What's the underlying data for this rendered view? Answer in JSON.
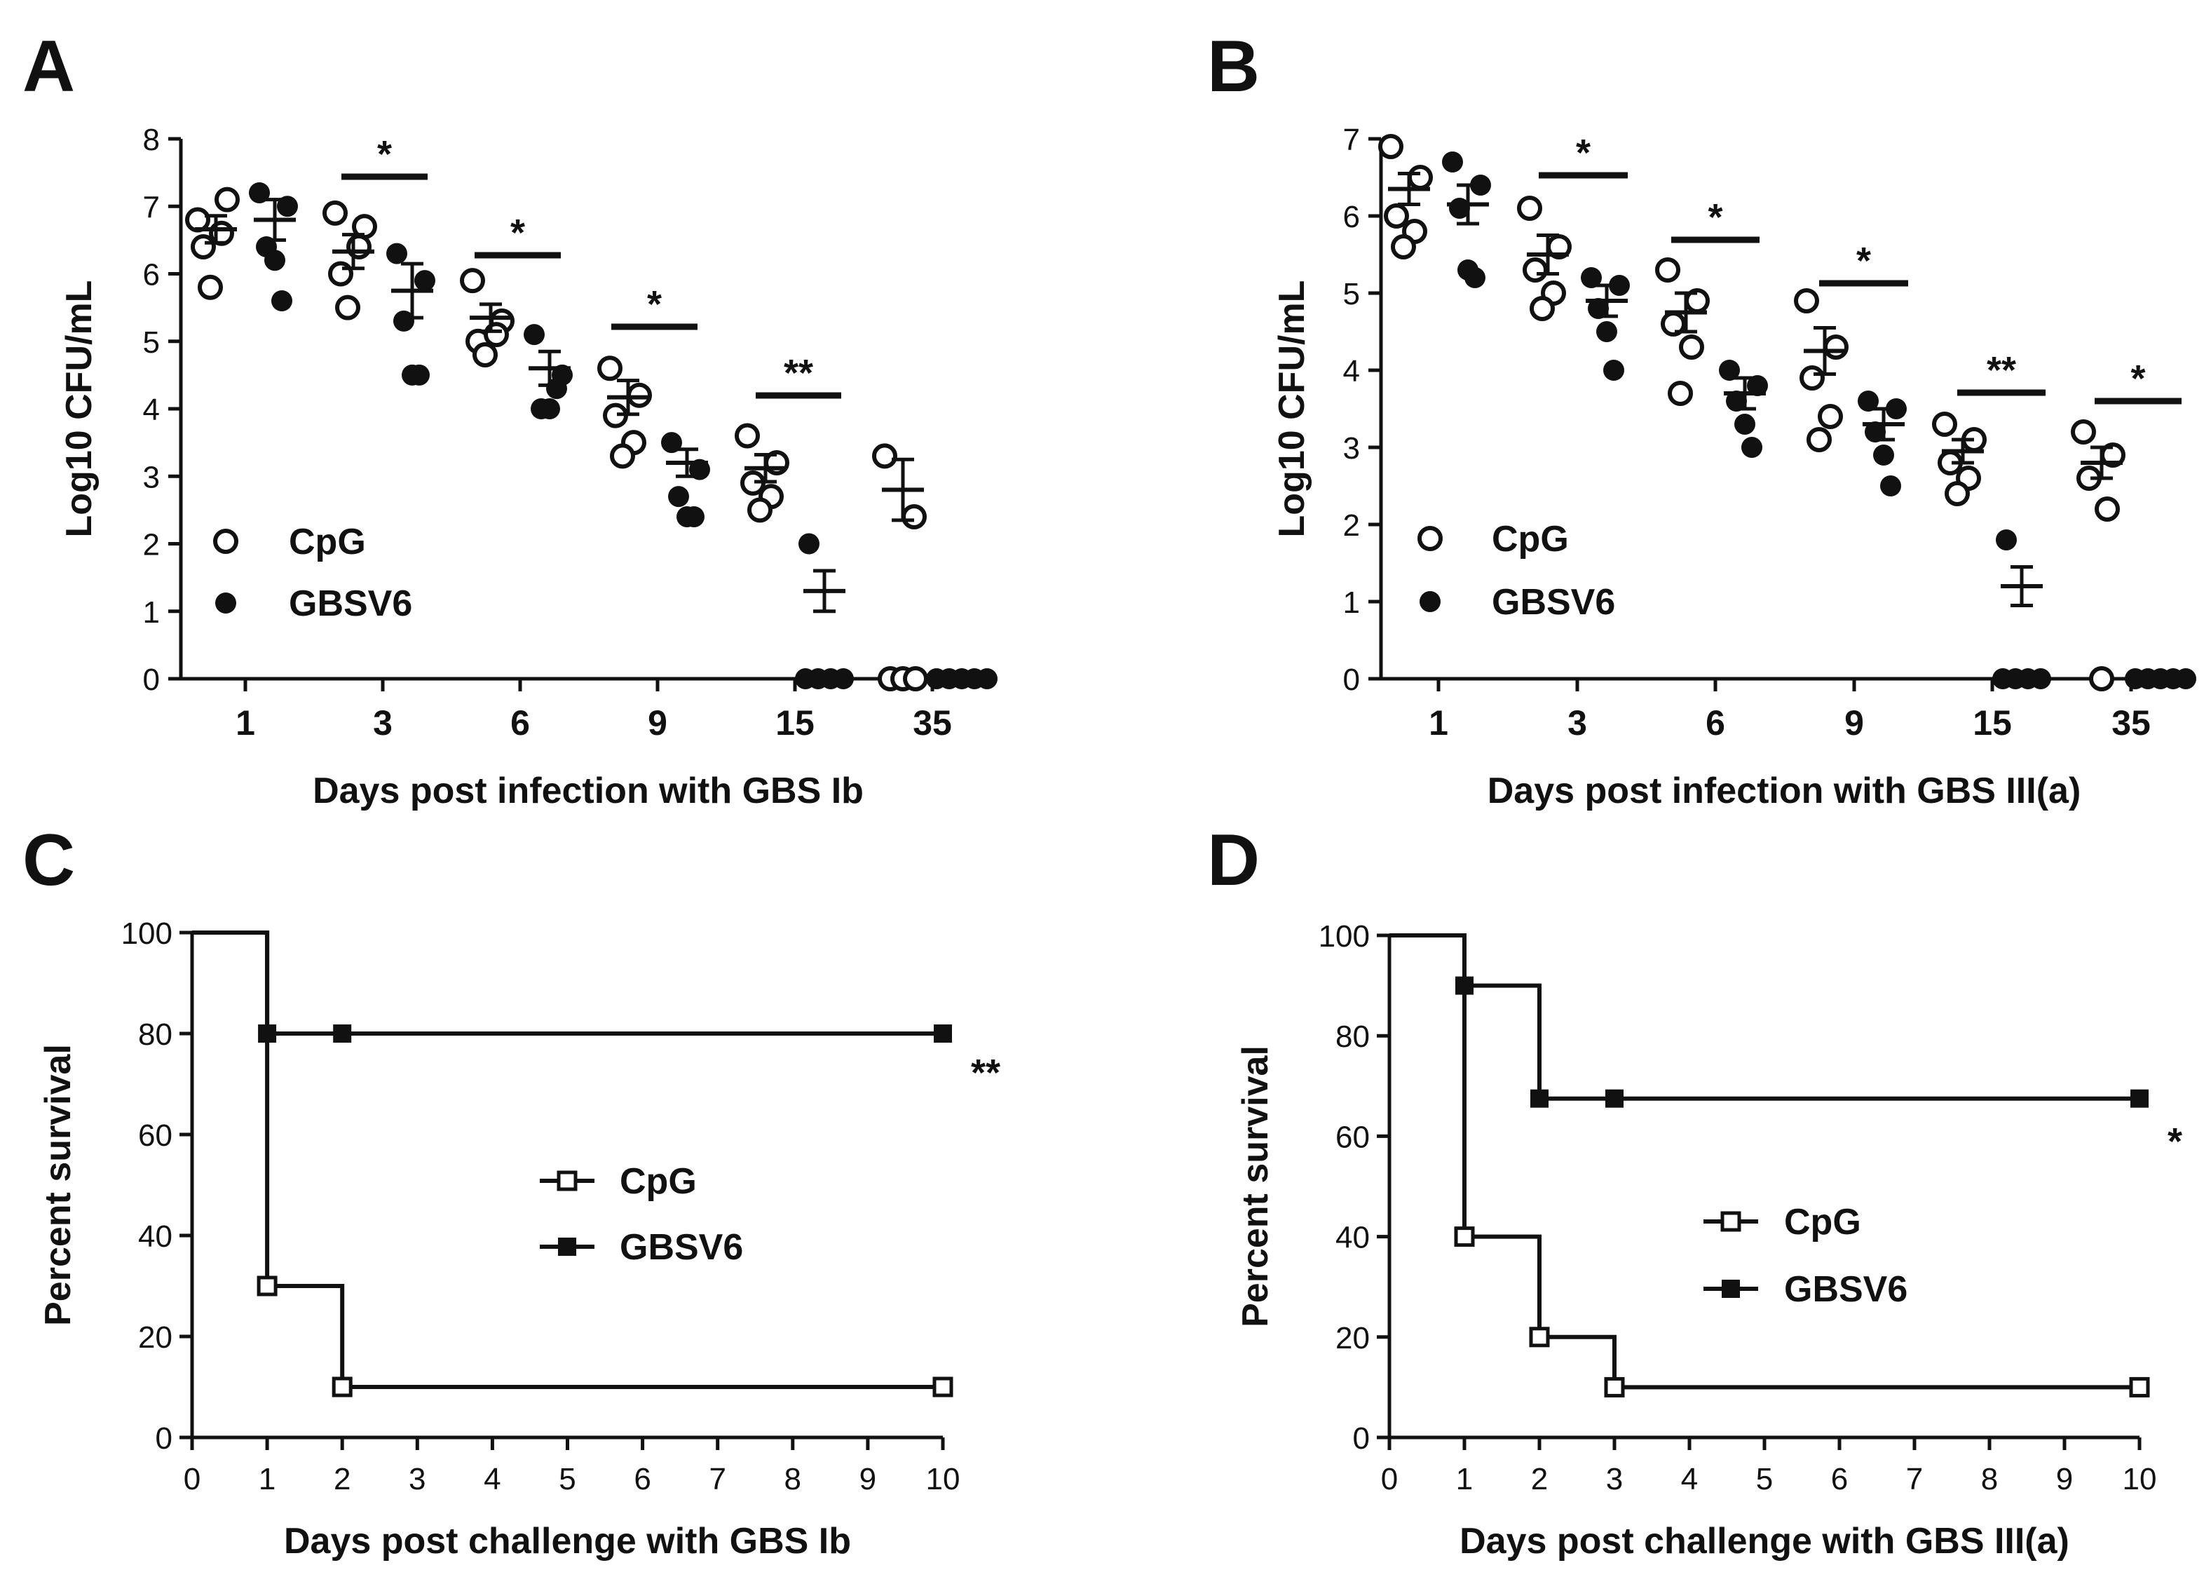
{
  "colors": {
    "ink": "#111111",
    "background": "#ffffff"
  },
  "chart_data": [
    {
      "panel": "A",
      "type": "scatter",
      "xlabel": "Days post infection with GBS Ib",
      "ylabel": "Log10 CFU/mL",
      "categories": [
        "1",
        "3",
        "6",
        "9",
        "15",
        "35"
      ],
      "ylim": [
        0,
        8
      ],
      "yticks": [
        "0",
        "1",
        "2",
        "3",
        "4",
        "5",
        "6",
        "7",
        "8"
      ],
      "legend": {
        "position": "bottom-left",
        "entries": [
          {
            "name": "CpG",
            "marker": "open-circle"
          },
          {
            "name": "GBSV6",
            "marker": "filled-circle"
          }
        ]
      },
      "series": [
        {
          "name": "CpG",
          "marker": "open",
          "points": [
            [
              6.8,
              7.1,
              6.4,
              6.6,
              5.8
            ],
            [
              6.9,
              6.7,
              6.0,
              6.4,
              5.5
            ],
            [
              5.9,
              5.3,
              5.0,
              5.1,
              4.8
            ],
            [
              4.6,
              4.2,
              3.9,
              3.5,
              3.3
            ],
            [
              3.6,
              3.2,
              2.9,
              2.7,
              2.5
            ],
            [
              3.3,
              2.4,
              0,
              0,
              0
            ]
          ],
          "mean": [
            6.66,
            6.33,
            5.35,
            4.17,
            3.12,
            2.8
          ],
          "sem": [
            0.2,
            0.25,
            0.2,
            0.25,
            0.2,
            0.45
          ]
        },
        {
          "name": "GBSV6",
          "marker": "filled",
          "points": [
            [
              7.2,
              7.0,
              6.4,
              6.2,
              5.6
            ],
            [
              6.3,
              5.9,
              5.3,
              4.5,
              4.5
            ],
            [
              5.1,
              4.5,
              4.0,
              4.0,
              4.3
            ],
            [
              3.5,
              3.1,
              2.7,
              2.4,
              2.4
            ],
            [
              2.0,
              0,
              0,
              0,
              0
            ],
            [
              0,
              0,
              0,
              0,
              0
            ]
          ],
          "mean": [
            6.8,
            5.75,
            4.6,
            3.2,
            1.3
          ],
          "sem": [
            0.3,
            0.4,
            0.25,
            0.2,
            0.3
          ]
        }
      ],
      "significance": [
        "*",
        "*",
        "*",
        "**"
      ]
    },
    {
      "panel": "B",
      "type": "scatter",
      "xlabel": "Days post infection with GBS III(a)",
      "ylabel": "Log10 CFU/mL",
      "categories": [
        "1",
        "3",
        "6",
        "9",
        "15",
        "35"
      ],
      "ylim": [
        0,
        7
      ],
      "yticks": [
        "0",
        "1",
        "2",
        "3",
        "4",
        "5",
        "6",
        "7"
      ],
      "legend": {
        "position": "bottom-left",
        "entries": [
          {
            "name": "CpG",
            "marker": "open-circle"
          },
          {
            "name": "GBSV6",
            "marker": "filled-circle"
          }
        ]
      },
      "series": [
        {
          "name": "CpG",
          "marker": "open",
          "points": [
            [
              6.9,
              6.5,
              6.0,
              5.8,
              5.6
            ],
            [
              6.1,
              5.6,
              5.3,
              5.0,
              4.8
            ],
            [
              5.3,
              4.9,
              4.6,
              4.3,
              3.7
            ],
            [
              4.9,
              4.3,
              3.9,
              3.4,
              3.1
            ],
            [
              3.3,
              3.1,
              2.8,
              2.6,
              2.4
            ],
            [
              3.2,
              2.9,
              2.6,
              2.2,
              0
            ]
          ],
          "mean": [
            6.35,
            5.5,
            4.75,
            4.25,
            2.95,
            2.8
          ],
          "sem": [
            0.2,
            0.25,
            0.25,
            0.3,
            0.15,
            0.2
          ]
        },
        {
          "name": "GBSV6",
          "marker": "filled",
          "points": [
            [
              6.7,
              6.4,
              6.1,
              5.3,
              5.2
            ],
            [
              5.2,
              5.1,
              4.8,
              4.5,
              4.0
            ],
            [
              4.0,
              3.8,
              3.6,
              3.3,
              3.0
            ],
            [
              3.6,
              3.5,
              3.2,
              2.9,
              2.5
            ],
            [
              1.8,
              0,
              0,
              0,
              0
            ],
            [
              0,
              0,
              0,
              0,
              0
            ]
          ],
          "mean": [
            6.15,
            4.9,
            3.7,
            3.3,
            1.2
          ],
          "sem": [
            0.25,
            0.2,
            0.2,
            0.2,
            0.25
          ]
        }
      ],
      "significance": [
        "*",
        "*",
        "*",
        "**",
        "*"
      ]
    },
    {
      "panel": "C",
      "type": "line",
      "subtype": "survival-step",
      "xlabel": "Days post challenge with GBS Ib",
      "ylabel": "Percent survival",
      "xlim": [
        0,
        10
      ],
      "ylim": [
        0,
        100
      ],
      "xticks": [
        "0",
        "1",
        "2",
        "3",
        "4",
        "5",
        "6",
        "7",
        "8",
        "9",
        "10"
      ],
      "yticks": [
        "0",
        "20",
        "40",
        "60",
        "80",
        "100"
      ],
      "legend": {
        "position": "center",
        "entries": [
          {
            "name": "CpG",
            "marker": "open-square"
          },
          {
            "name": "GBSV6",
            "marker": "filled-square"
          }
        ]
      },
      "series": [
        {
          "name": "CpG",
          "marker": "open",
          "steps": [
            [
              0,
              100
            ],
            [
              1,
              30
            ],
            [
              2,
              10
            ],
            [
              10,
              10
            ]
          ],
          "marks": [
            [
              1,
              30
            ],
            [
              2,
              10
            ],
            [
              10,
              10
            ]
          ]
        },
        {
          "name": "GBSV6",
          "marker": "filled",
          "steps": [
            [
              0,
              100
            ],
            [
              1,
              80
            ],
            [
              10,
              80
            ]
          ],
          "marks": [
            [
              1,
              80
            ],
            [
              2,
              80
            ],
            [
              10,
              80
            ]
          ]
        }
      ],
      "annotation": "**"
    },
    {
      "panel": "D",
      "type": "line",
      "subtype": "survival-step",
      "xlabel": "Days post challenge with GBS III(a)",
      "ylabel": "Percent survival",
      "xlim": [
        0,
        10
      ],
      "ylim": [
        0,
        100
      ],
      "xticks": [
        "0",
        "1",
        "2",
        "3",
        "4",
        "5",
        "6",
        "7",
        "8",
        "9",
        "10"
      ],
      "yticks": [
        "0",
        "20",
        "40",
        "60",
        "80",
        "100"
      ],
      "legend": {
        "position": "center",
        "entries": [
          {
            "name": "CpG",
            "marker": "open-square"
          },
          {
            "name": "GBSV6",
            "marker": "filled-square"
          }
        ]
      },
      "series": [
        {
          "name": "CpG",
          "marker": "open",
          "steps": [
            [
              0,
              100
            ],
            [
              1,
              40
            ],
            [
              2,
              20
            ],
            [
              3,
              10
            ],
            [
              10,
              10
            ]
          ],
          "marks": [
            [
              1,
              40
            ],
            [
              2,
              20
            ],
            [
              3,
              10
            ],
            [
              10,
              10
            ]
          ]
        },
        {
          "name": "GBSV6",
          "marker": "filled",
          "steps": [
            [
              0,
              100
            ],
            [
              1,
              90
            ],
            [
              2,
              67.5
            ],
            [
              10,
              67.5
            ]
          ],
          "marks": [
            [
              1,
              90
            ],
            [
              2,
              67.5
            ],
            [
              3,
              67.5
            ],
            [
              10,
              67.5
            ]
          ]
        }
      ],
      "annotation": "*"
    }
  ]
}
